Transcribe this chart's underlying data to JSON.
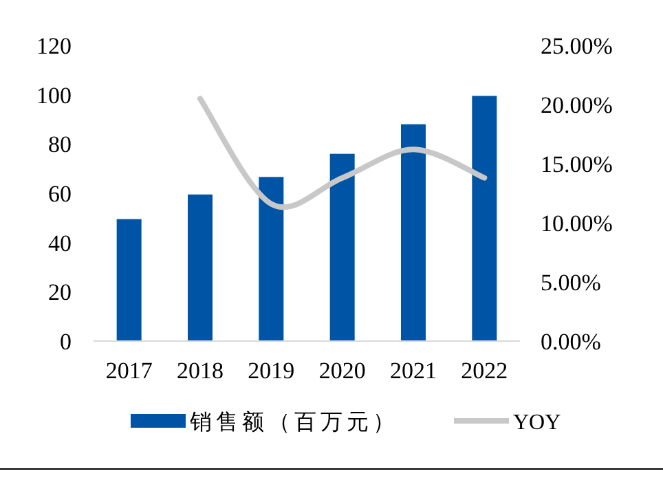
{
  "chart_data": {
    "type": "bar",
    "categories": [
      "2017",
      "2018",
      "2019",
      "2020",
      "2021",
      "2022"
    ],
    "series": [
      {
        "name": "销售额（百万元）",
        "color": "#0054a6",
        "values": [
          49.5,
          59.5,
          66.6,
          76,
          88,
          99.5
        ]
      },
      {
        "name": "YOY",
        "type": "line",
        "axis": "y2",
        "color": "#c8c8c8",
        "values": [
          null,
          20.5,
          11.6,
          13.8,
          16.2,
          13.8
        ]
      }
    ],
    "ylim": [
      0,
      120
    ],
    "yticks": [
      0,
      20,
      40,
      60,
      80,
      100,
      120
    ],
    "y2lim": [
      0,
      25
    ],
    "y2ticks": [
      {
        "value": 0,
        "label": "0.00%"
      },
      {
        "value": 5,
        "label": "5.00%"
      },
      {
        "value": 10,
        "label": "10.00%"
      },
      {
        "value": 15,
        "label": "15.00%"
      },
      {
        "value": 20,
        "label": "20.00%"
      },
      {
        "value": 25,
        "label": "25.00%"
      }
    ],
    "legend": "bottom"
  }
}
